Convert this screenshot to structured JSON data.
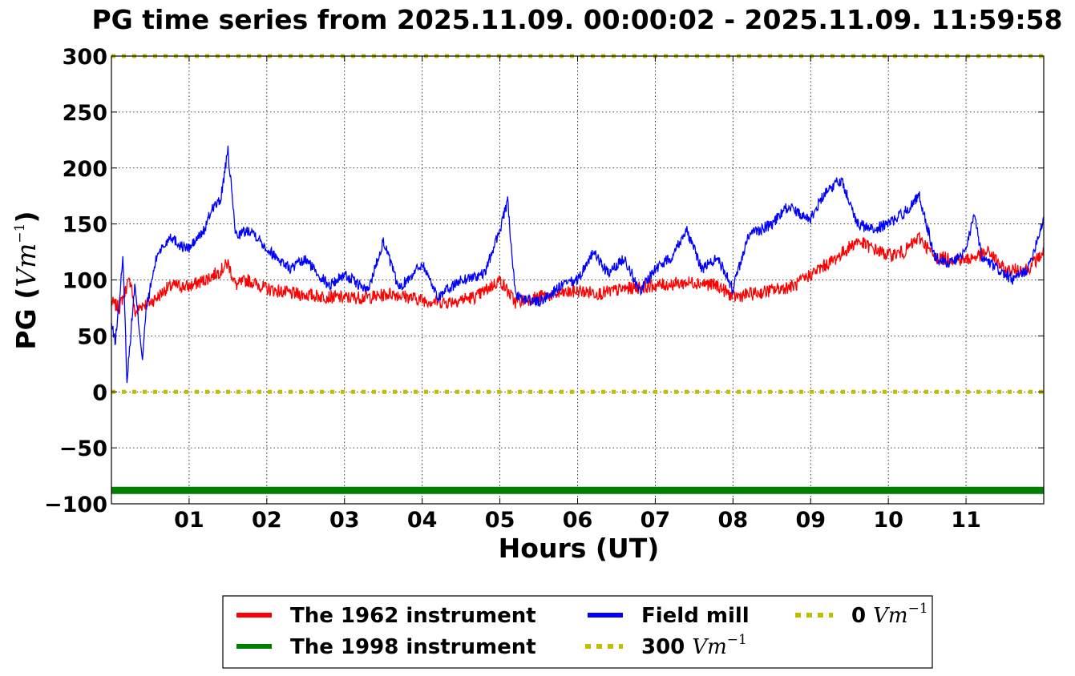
{
  "chart_data": {
    "type": "line",
    "title": "PG time series from 2025.11.09. 00:00:02 - 2025.11.09. 11:59:58",
    "xlabel": "Hours (UT)",
    "ylabel": {
      "prefix": "PG (",
      "unit": "Vm",
      "exp": "−1",
      "suffix": ")"
    },
    "xlim": [
      0,
      12
    ],
    "ylim": [
      -100,
      300
    ],
    "x_ticks": [
      1,
      2,
      3,
      4,
      5,
      6,
      7,
      8,
      9,
      10,
      11
    ],
    "x_tick_labels": [
      "01",
      "02",
      "03",
      "04",
      "05",
      "06",
      "07",
      "08",
      "09",
      "10",
      "11"
    ],
    "y_ticks": [
      -100,
      -50,
      0,
      50,
      100,
      150,
      200,
      250,
      300
    ],
    "y_tick_labels": [
      "−100",
      "−50",
      "0",
      "50",
      "100",
      "150",
      "200",
      "250",
      "300"
    ],
    "grid": true,
    "legend_position": "bottom-center",
    "series": [
      {
        "name": "The 1962 instrument",
        "color": "#ff0000",
        "style": "solid",
        "x": [
          0,
          0.1,
          0.2,
          0.25,
          0.3,
          0.4,
          0.5,
          0.6,
          0.7,
          0.8,
          1.0,
          1.2,
          1.4,
          1.5,
          1.6,
          1.75,
          2.0,
          2.3,
          2.6,
          3.0,
          3.4,
          3.6,
          4.0,
          4.3,
          4.7,
          5.0,
          5.2,
          5.5,
          5.8,
          6.0,
          6.3,
          6.6,
          7.0,
          7.5,
          7.8,
          8.0,
          8.3,
          8.8,
          9.0,
          9.3,
          9.6,
          9.8,
          10.0,
          10.2,
          10.4,
          10.6,
          11.0,
          11.3,
          11.5,
          11.8,
          12.0
        ],
        "values": [
          80,
          75,
          95,
          100,
          70,
          78,
          80,
          85,
          92,
          95,
          94,
          100,
          108,
          115,
          95,
          100,
          92,
          88,
          86,
          84,
          85,
          88,
          82,
          80,
          85,
          100,
          80,
          85,
          88,
          90,
          88,
          92,
          95,
          98,
          95,
          85,
          88,
          95,
          105,
          118,
          135,
          128,
          122,
          125,
          138,
          120,
          118,
          125,
          108,
          110,
          125
        ]
      },
      {
        "name": "The 1998 instrument",
        "color": "#008000",
        "style": "solid",
        "x": [
          0,
          12
        ],
        "values": [
          -88,
          -88
        ]
      },
      {
        "name": "Field mill",
        "color": "#0000ff",
        "style": "solid",
        "x": [
          0,
          0.05,
          0.1,
          0.15,
          0.2,
          0.3,
          0.4,
          0.45,
          0.55,
          0.6,
          0.7,
          0.75,
          0.9,
          1.0,
          1.2,
          1.3,
          1.4,
          1.5,
          1.6,
          1.8,
          2.0,
          2.3,
          2.5,
          2.8,
          3.0,
          3.3,
          3.5,
          3.7,
          4.0,
          4.2,
          4.5,
          4.8,
          5.0,
          5.1,
          5.2,
          5.5,
          5.8,
          6.0,
          6.2,
          6.4,
          6.6,
          6.8,
          7.0,
          7.2,
          7.4,
          7.6,
          7.8,
          8.0,
          8.2,
          8.5,
          8.7,
          9.0,
          9.2,
          9.4,
          9.6,
          9.8,
          10.0,
          10.2,
          10.4,
          10.6,
          10.8,
          11.0,
          11.1,
          11.2,
          11.4,
          11.6,
          11.8,
          12.0
        ],
        "values": [
          60,
          45,
          80,
          120,
          10,
          95,
          30,
          75,
          110,
          125,
          132,
          140,
          130,
          128,
          145,
          165,
          170,
          215,
          140,
          145,
          128,
          110,
          118,
          95,
          105,
          90,
          135,
          92,
          115,
          85,
          100,
          105,
          145,
          170,
          85,
          80,
          95,
          100,
          125,
          105,
          120,
          90,
          110,
          120,
          145,
          110,
          120,
          92,
          140,
          150,
          165,
          155,
          180,
          190,
          150,
          145,
          150,
          160,
          175,
          120,
          115,
          125,
          160,
          120,
          110,
          100,
          110,
          155
        ]
      },
      {
        "name": "300 Vm⁻¹",
        "color": "#bfbf00",
        "style": "dotted",
        "x": [
          0,
          12
        ],
        "values": [
          300,
          300
        ]
      },
      {
        "name": "0 Vm⁻¹",
        "color": "#bfbf00",
        "style": "dotted",
        "x": [
          0,
          12
        ],
        "values": [
          0,
          0
        ]
      }
    ],
    "legend": [
      {
        "label": "The 1962 instrument",
        "number": "",
        "unit": "",
        "exp": "",
        "color": "#ff0000",
        "style": "solid"
      },
      {
        "label": "The 1998 instrument",
        "number": "",
        "unit": "",
        "exp": "",
        "color": "#008000",
        "style": "solid"
      },
      {
        "label": "Field mill",
        "number": "",
        "unit": "",
        "exp": "",
        "color": "#0000ff",
        "style": "solid"
      },
      {
        "label": "",
        "number": "300",
        "unit": "Vm",
        "exp": "−1",
        "color": "#bfbf00",
        "style": "dotted"
      },
      {
        "label": "",
        "number": "0",
        "unit": "Vm",
        "exp": "−1",
        "color": "#bfbf00",
        "style": "dotted"
      }
    ]
  }
}
